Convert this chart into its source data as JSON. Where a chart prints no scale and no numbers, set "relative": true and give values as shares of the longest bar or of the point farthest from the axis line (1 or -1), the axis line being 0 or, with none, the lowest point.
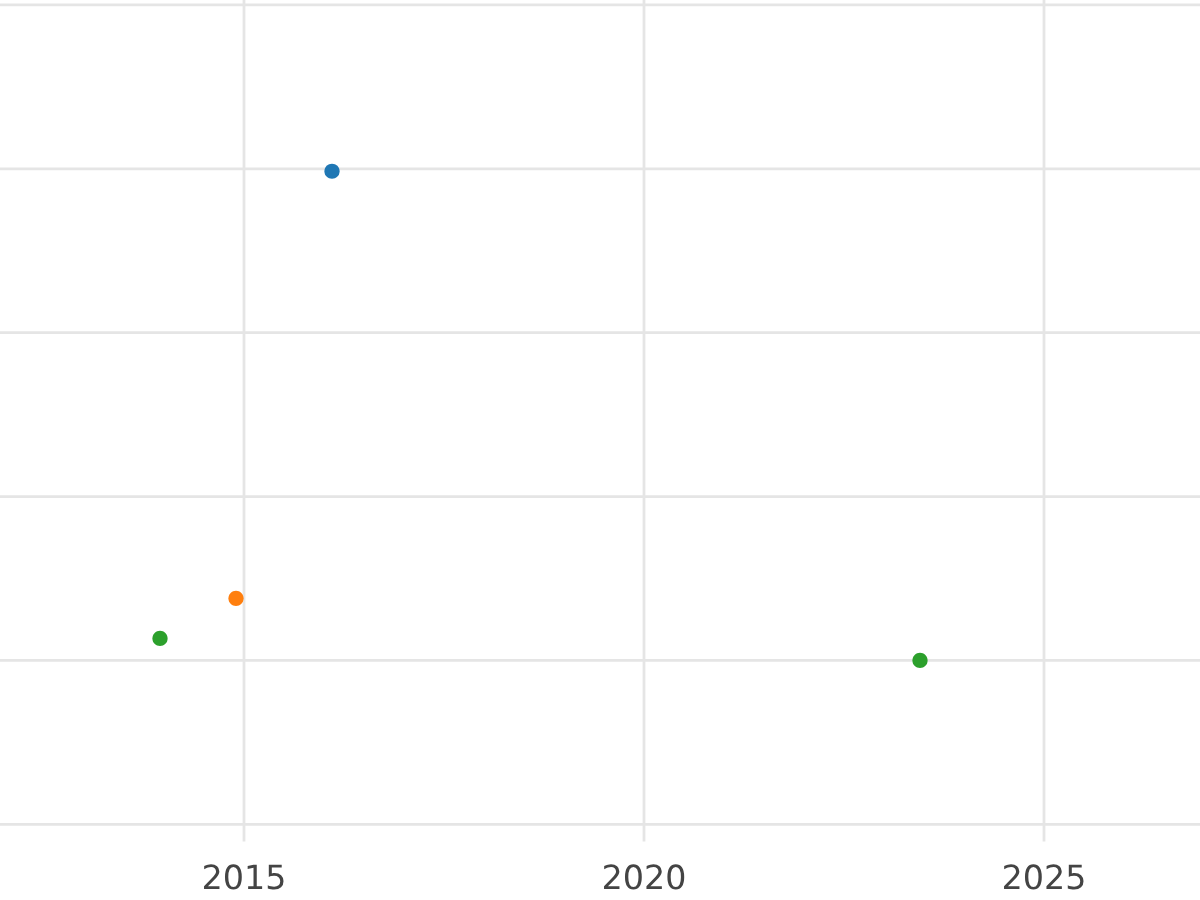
{
  "chart_data": {
    "type": "scatter",
    "relative": true,
    "grid": true,
    "tick_labels": "x",
    "marker": "circle",
    "xlim": [
      2011.95,
      2026.95
    ],
    "xticks": [
      2015,
      2020,
      2025
    ],
    "series": [
      {
        "color": "#1f77b4",
        "x": [
          2016.1
        ],
        "values": [
          1
        ]
      },
      {
        "color": "#ff7f0e",
        "x": [
          2014.9
        ],
        "values": [
          0.127
        ]
      },
      {
        "color": "#2ca02c",
        "x": [
          2013.95,
          2023.45
        ],
        "values": [
          0.045,
          0
        ]
      }
    ]
  }
}
